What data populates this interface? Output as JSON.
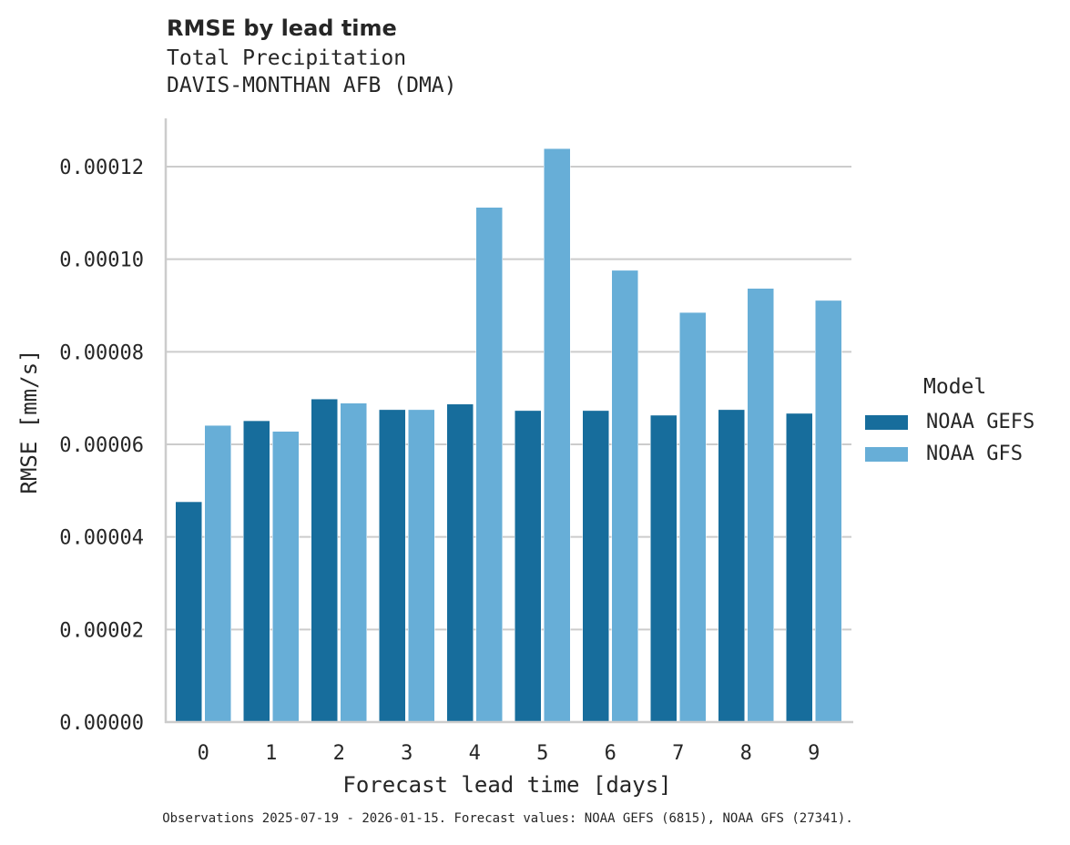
{
  "header": {
    "title": "RMSE by lead time",
    "subtitle_1": "Total Precipitation",
    "subtitle_2": "DAVIS-MONTHAN AFB (DMA)"
  },
  "caption": "Observations 2025-07-19 - 2026-01-15. Forecast values: NOAA GEFS (6815), NOAA GFS (27341).",
  "legend": {
    "title": "Model",
    "items": [
      {
        "label": "NOAA GEFS",
        "color": "#176d9c"
      },
      {
        "label": "NOAA GFS",
        "color": "#67aed7"
      }
    ]
  },
  "chart_data": {
    "type": "bar",
    "title": "RMSE by lead time",
    "subtitle": [
      "Total Precipitation",
      "DAVIS-MONTHAN AFB (DMA)"
    ],
    "xlabel": "Forecast lead time [days]",
    "ylabel": "RMSE [mm/s]",
    "categories": [
      "0",
      "1",
      "2",
      "3",
      "4",
      "5",
      "6",
      "7",
      "8",
      "9"
    ],
    "series": [
      {
        "name": "NOAA GEFS",
        "color": "#176d9c",
        "values": [
          4.76e-05,
          6.51e-05,
          6.98e-05,
          6.75e-05,
          6.87e-05,
          6.73e-05,
          6.73e-05,
          6.63e-05,
          6.75e-05,
          6.67e-05
        ]
      },
      {
        "name": "NOAA GFS",
        "color": "#67aed7",
        "values": [
          6.41e-05,
          6.28e-05,
          6.89e-05,
          6.75e-05,
          0.0001112,
          0.0001239,
          9.76e-05,
          8.85e-05,
          9.37e-05,
          9.11e-05
        ]
      }
    ],
    "yticks": [
      "0.00000",
      "0.00002",
      "0.00004",
      "0.00006",
      "0.00008",
      "0.00010",
      "0.00012"
    ],
    "ylim": [
      0,
      0.00013
    ],
    "grid": "horizontal",
    "legend_position": "right",
    "legend_title": "Model"
  }
}
